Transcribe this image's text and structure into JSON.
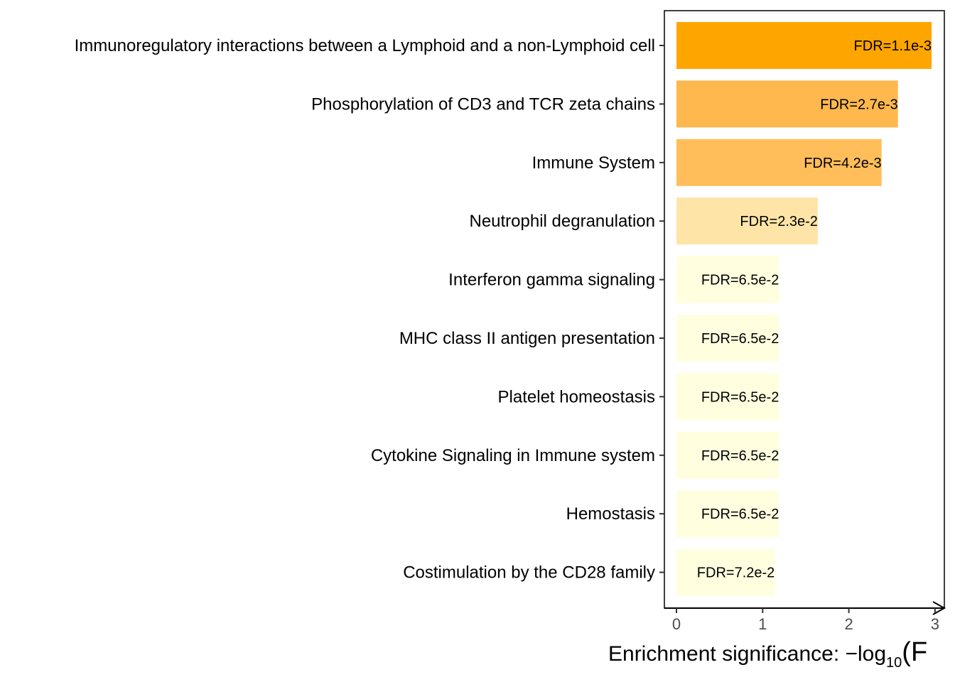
{
  "chart_data": {
    "type": "bar",
    "orientation": "horizontal",
    "categories": [
      "Immunoregulatory interactions between a Lymphoid and a non-Lymphoid cell",
      "Phosphorylation of CD3 and TCR zeta chains",
      "Immune System",
      "Neutrophil degranulation",
      "Interferon gamma signaling",
      "MHC class II antigen presentation",
      "Platelet homeostasis",
      "Cytokine Signaling in Immune system",
      "Hemostasis",
      "Costimulation by the CD28 family"
    ],
    "values": [
      2.96,
      2.57,
      2.38,
      1.64,
      1.19,
      1.19,
      1.19,
      1.19,
      1.19,
      1.14
    ],
    "bar_labels": [
      "FDR=1.1e-3",
      "FDR=2.7e-3",
      "FDR=4.2e-3",
      "FDR=2.3e-2",
      "FDR=6.5e-2",
      "FDR=6.5e-2",
      "FDR=6.5e-2",
      "FDR=6.5e-2",
      "FDR=6.5e-2",
      "FDR=7.2e-2"
    ],
    "bar_colors": [
      "#ffa500",
      "#ffb84d",
      "#ffbe5a",
      "#ffe4a8",
      "#ffffe0",
      "#ffffe0",
      "#ffffe0",
      "#ffffe0",
      "#ffffe0",
      "#ffffe0"
    ],
    "xticks": [
      0,
      1,
      2,
      3
    ],
    "xlim": [
      -0.14,
      3.1
    ],
    "xlabel": "Enrichment significance: −log",
    "xlabel_subscript": "10",
    "xlabel_suffix": "(F",
    "title": "",
    "ylabel": "",
    "grid": false
  }
}
